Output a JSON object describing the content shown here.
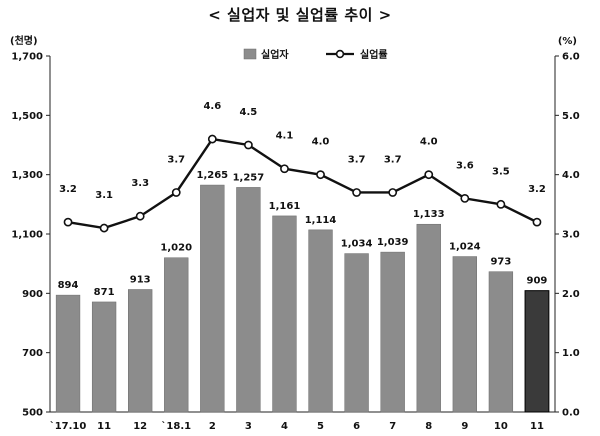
{
  "title": "< 실업자 및 실업률 추이 >",
  "chart_data": {
    "type": "bar+line",
    "categories": [
      "`17.10",
      "11",
      "12",
      "`18.1",
      "2",
      "3",
      "4",
      "5",
      "6",
      "7",
      "8",
      "9",
      "10",
      "11"
    ],
    "series": [
      {
        "name": "실업자",
        "type": "bar",
        "axis": "left",
        "values": [
          894,
          871,
          913,
          1020,
          1265,
          1257,
          1161,
          1114,
          1034,
          1039,
          1133,
          1024,
          973,
          909
        ],
        "labels": [
          "894",
          "871",
          "913",
          "1,020",
          "1,265",
          "1,257",
          "1,161",
          "1,114",
          "1,034",
          "1,039",
          "1,133",
          "1,024",
          "973",
          "909"
        ],
        "color": "#8c8c8c",
        "highlight_last_color": "#3a3a3a"
      },
      {
        "name": "실업률",
        "type": "line",
        "axis": "right",
        "values": [
          3.2,
          3.1,
          3.3,
          3.7,
          4.6,
          4.5,
          4.1,
          4.0,
          3.7,
          3.7,
          4.0,
          3.6,
          3.5,
          3.2
        ],
        "labels": [
          "3.2",
          "3.1",
          "3.3",
          "3.7",
          "4.6",
          "4.5",
          "4.1",
          "4.0",
          "3.7",
          "3.7",
          "4.0",
          "3.6",
          "3.5",
          "3.2"
        ],
        "color": "#111111"
      }
    ],
    "left_axis": {
      "unit": "(천명)",
      "ylim": [
        500,
        1700
      ],
      "ticks": [
        500,
        700,
        900,
        1100,
        1300,
        1500,
        1700
      ],
      "tick_labels": [
        "500",
        "700",
        "900",
        "1,100",
        "1,300",
        "1,500",
        "1,700"
      ]
    },
    "right_axis": {
      "unit": "(%)",
      "ylim": [
        0.0,
        6.0
      ],
      "ticks": [
        0.0,
        1.0,
        2.0,
        3.0,
        4.0,
        5.0,
        6.0
      ],
      "tick_labels": [
        "0.0",
        "1.0",
        "2.0",
        "3.0",
        "4.0",
        "5.0",
        "6.0"
      ]
    },
    "grid": false,
    "legend_position": "top-center"
  }
}
